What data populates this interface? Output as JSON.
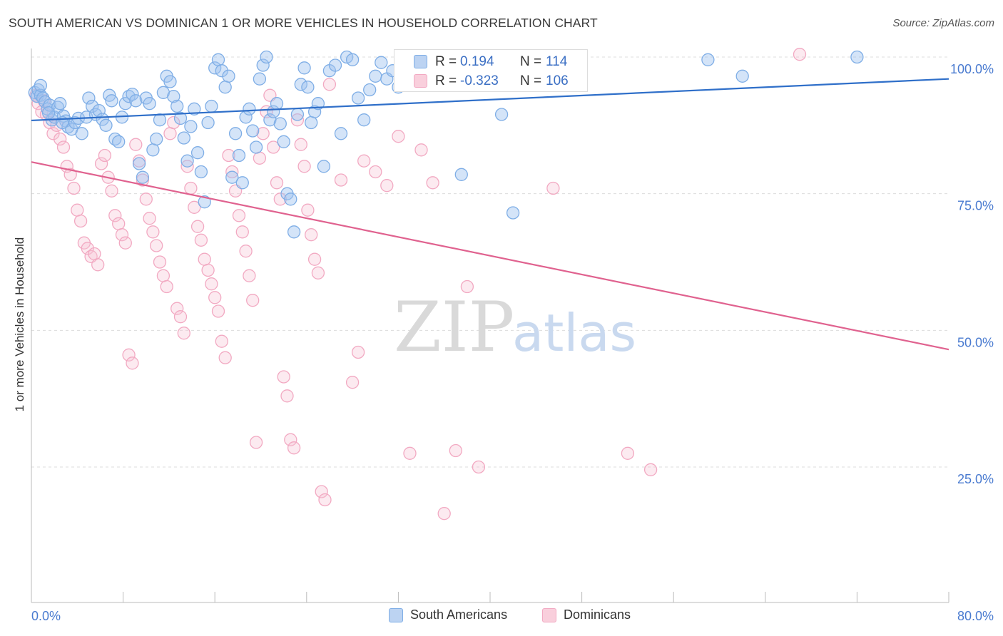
{
  "title": "SOUTH AMERICAN VS DOMINICAN 1 OR MORE VEHICLES IN HOUSEHOLD CORRELATION CHART",
  "source": "Source: ZipAtlas.com",
  "watermark": {
    "zip": "ZIP",
    "atlas": "atlas"
  },
  "colors": {
    "blue": "#7faee6",
    "blue_line": "#2f6fc9",
    "pink": "#f2a9c2",
    "pink_line": "#e0628f",
    "axis_text": "#4a7bd0",
    "grid": "#dcdcdc"
  },
  "stats": [
    {
      "r_label": "R =",
      "r_value": " 0.194",
      "n_label": "N =",
      "n_value": "114"
    },
    {
      "r_label": "R =",
      "r_value": "-0.323",
      "n_label": "N =",
      "n_value": "106"
    }
  ],
  "legend": [
    "South Americans",
    "Dominicans"
  ],
  "chart_data": {
    "type": "scatter",
    "ylabel": "1 or more Vehicles in Household",
    "xlim": [
      0,
      80
    ],
    "ylim": [
      0,
      104
    ],
    "x_ticks": [
      "0.0%",
      "80.0%"
    ],
    "y_ticks": [
      {
        "value": 100,
        "label": "100.0%"
      },
      {
        "value": 75,
        "label": "75.0%"
      },
      {
        "value": 50,
        "label": "50.0%"
      },
      {
        "value": 25,
        "label": "25.0%"
      }
    ],
    "grid": true,
    "legend_position": "bottom",
    "series": [
      {
        "name": "South Americans",
        "trend": {
          "x": [
            0,
            80
          ],
          "y": [
            88.4,
            96.0
          ]
        },
        "points": [
          [
            0.3,
            93.5
          ],
          [
            0.5,
            92.8
          ],
          [
            0.6,
            94.0
          ],
          [
            0.8,
            93.0
          ],
          [
            1.0,
            92.5
          ],
          [
            1.2,
            91.8
          ],
          [
            1.4,
            90.5
          ],
          [
            1.6,
            91.2
          ],
          [
            1.8,
            88.5
          ],
          [
            2.0,
            89.0
          ],
          [
            2.3,
            90.8
          ],
          [
            2.5,
            91.5
          ],
          [
            2.8,
            89.2
          ],
          [
            3.0,
            88.3
          ],
          [
            3.2,
            87.2
          ],
          [
            3.5,
            86.8
          ],
          [
            3.8,
            88.0
          ],
          [
            4.1,
            88.8
          ],
          [
            4.4,
            86.0
          ],
          [
            4.8,
            89.0
          ],
          [
            5.0,
            92.5
          ],
          [
            5.3,
            91.0
          ],
          [
            5.6,
            89.5
          ],
          [
            5.9,
            90.2
          ],
          [
            6.2,
            88.6
          ],
          [
            6.5,
            87.5
          ],
          [
            6.8,
            93.0
          ],
          [
            7.0,
            92.0
          ],
          [
            7.3,
            85.0
          ],
          [
            7.6,
            84.5
          ],
          [
            7.9,
            89.0
          ],
          [
            8.2,
            91.5
          ],
          [
            8.5,
            92.8
          ],
          [
            8.8,
            93.2
          ],
          [
            9.1,
            92.0
          ],
          [
            9.4,
            80.5
          ],
          [
            9.7,
            78.0
          ],
          [
            10.0,
            92.5
          ],
          [
            10.3,
            91.5
          ],
          [
            10.6,
            83.0
          ],
          [
            10.9,
            85.0
          ],
          [
            11.2,
            88.5
          ],
          [
            11.5,
            93.5
          ],
          [
            11.8,
            96.5
          ],
          [
            12.1,
            95.5
          ],
          [
            12.4,
            92.8
          ],
          [
            12.7,
            91.0
          ],
          [
            13.0,
            88.8
          ],
          [
            13.3,
            85.2
          ],
          [
            13.6,
            81.0
          ],
          [
            13.9,
            87.3
          ],
          [
            14.2,
            90.5
          ],
          [
            14.5,
            82.5
          ],
          [
            14.8,
            79.0
          ],
          [
            15.1,
            73.5
          ],
          [
            15.4,
            88.0
          ],
          [
            15.7,
            91.0
          ],
          [
            16.0,
            98.0
          ],
          [
            16.3,
            99.5
          ],
          [
            16.6,
            97.5
          ],
          [
            16.9,
            94.5
          ],
          [
            17.2,
            96.5
          ],
          [
            17.5,
            78.0
          ],
          [
            17.8,
            86.0
          ],
          [
            18.1,
            82.0
          ],
          [
            18.4,
            77.0
          ],
          [
            18.7,
            89.0
          ],
          [
            19.0,
            90.5
          ],
          [
            19.3,
            86.5
          ],
          [
            19.6,
            83.5
          ],
          [
            19.9,
            96.0
          ],
          [
            20.2,
            98.5
          ],
          [
            20.5,
            100.0
          ],
          [
            20.8,
            88.5
          ],
          [
            21.1,
            90.0
          ],
          [
            21.4,
            91.5
          ],
          [
            21.7,
            87.8
          ],
          [
            22.0,
            84.5
          ],
          [
            22.3,
            75.0
          ],
          [
            22.6,
            74.0
          ],
          [
            22.9,
            68.0
          ],
          [
            23.2,
            89.5
          ],
          [
            23.5,
            95.0
          ],
          [
            23.8,
            98.0
          ],
          [
            24.1,
            94.5
          ],
          [
            24.4,
            88.0
          ],
          [
            24.7,
            90.0
          ],
          [
            25.0,
            91.5
          ],
          [
            25.5,
            80.0
          ],
          [
            26.0,
            97.5
          ],
          [
            26.5,
            98.5
          ],
          [
            27.0,
            86.0
          ],
          [
            27.5,
            100.0
          ],
          [
            28.0,
            99.5
          ],
          [
            28.5,
            92.5
          ],
          [
            29.0,
            88.5
          ],
          [
            29.5,
            94.0
          ],
          [
            30.0,
            96.5
          ],
          [
            30.5,
            99.0
          ],
          [
            31.0,
            96.0
          ],
          [
            31.5,
            97.5
          ],
          [
            32.0,
            94.5
          ],
          [
            32.5,
            99.5
          ],
          [
            33.0,
            95.0
          ],
          [
            33.5,
            100.0
          ],
          [
            37.5,
            78.5
          ],
          [
            41.0,
            89.5
          ],
          [
            42.0,
            71.5
          ],
          [
            59.0,
            99.5
          ],
          [
            62.0,
            96.5
          ],
          [
            72.0,
            100.0
          ],
          [
            0.8,
            94.8
          ],
          [
            1.5,
            89.8
          ],
          [
            2.7,
            88.0
          ]
        ]
      },
      {
        "name": "Dominicans",
        "trend": {
          "x": [
            0,
            80
          ],
          "y": [
            80.8,
            46.5
          ]
        },
        "points": [
          [
            0.4,
            93.0
          ],
          [
            0.6,
            91.5
          ],
          [
            0.9,
            90.0
          ],
          [
            1.1,
            92.0
          ],
          [
            1.3,
            89.5
          ],
          [
            1.6,
            88.0
          ],
          [
            1.9,
            86.0
          ],
          [
            2.2,
            87.5
          ],
          [
            2.5,
            85.0
          ],
          [
            2.8,
            83.5
          ],
          [
            3.1,
            80.0
          ],
          [
            3.4,
            78.5
          ],
          [
            3.7,
            76.0
          ],
          [
            4.0,
            72.0
          ],
          [
            4.3,
            70.0
          ],
          [
            4.6,
            66.0
          ],
          [
            4.9,
            65.0
          ],
          [
            5.2,
            63.5
          ],
          [
            5.5,
            64.0
          ],
          [
            5.8,
            62.0
          ],
          [
            6.1,
            80.5
          ],
          [
            6.4,
            82.0
          ],
          [
            6.7,
            78.0
          ],
          [
            7.0,
            75.5
          ],
          [
            7.3,
            71.0
          ],
          [
            7.6,
            69.5
          ],
          [
            7.9,
            67.5
          ],
          [
            8.2,
            66.0
          ],
          [
            8.5,
            45.5
          ],
          [
            8.8,
            44.0
          ],
          [
            9.1,
            84.0
          ],
          [
            9.4,
            81.0
          ],
          [
            9.7,
            77.5
          ],
          [
            10.0,
            74.0
          ],
          [
            10.3,
            70.5
          ],
          [
            10.6,
            68.0
          ],
          [
            10.9,
            65.5
          ],
          [
            11.2,
            62.5
          ],
          [
            11.5,
            60.0
          ],
          [
            11.8,
            58.0
          ],
          [
            12.1,
            86.0
          ],
          [
            12.4,
            88.0
          ],
          [
            12.7,
            54.0
          ],
          [
            13.0,
            52.5
          ],
          [
            13.3,
            49.5
          ],
          [
            13.6,
            80.0
          ],
          [
            13.9,
            76.0
          ],
          [
            14.2,
            72.5
          ],
          [
            14.5,
            69.0
          ],
          [
            14.8,
            66.5
          ],
          [
            15.1,
            63.0
          ],
          [
            15.4,
            61.0
          ],
          [
            15.7,
            58.5
          ],
          [
            16.0,
            56.0
          ],
          [
            16.3,
            53.5
          ],
          [
            16.6,
            48.0
          ],
          [
            16.9,
            45.0
          ],
          [
            17.2,
            82.0
          ],
          [
            17.5,
            79.0
          ],
          [
            17.8,
            75.5
          ],
          [
            18.1,
            71.0
          ],
          [
            18.4,
            68.0
          ],
          [
            18.7,
            64.5
          ],
          [
            19.0,
            60.0
          ],
          [
            19.3,
            55.5
          ],
          [
            19.6,
            29.5
          ],
          [
            19.9,
            81.5
          ],
          [
            20.2,
            86.0
          ],
          [
            20.5,
            90.0
          ],
          [
            20.8,
            93.0
          ],
          [
            21.1,
            83.5
          ],
          [
            21.4,
            77.0
          ],
          [
            21.7,
            74.0
          ],
          [
            22.0,
            41.5
          ],
          [
            22.3,
            38.0
          ],
          [
            22.6,
            30.0
          ],
          [
            22.9,
            28.5
          ],
          [
            23.2,
            88.5
          ],
          [
            23.5,
            84.0
          ],
          [
            23.8,
            80.0
          ],
          [
            24.1,
            72.0
          ],
          [
            24.4,
            67.5
          ],
          [
            24.7,
            63.0
          ],
          [
            25.0,
            60.5
          ],
          [
            25.3,
            20.5
          ],
          [
            25.6,
            19.0
          ],
          [
            26.0,
            95.0
          ],
          [
            27.0,
            77.5
          ],
          [
            28.0,
            40.5
          ],
          [
            28.5,
            46.0
          ],
          [
            29.0,
            81.0
          ],
          [
            30.0,
            79.0
          ],
          [
            31.0,
            76.5
          ],
          [
            32.0,
            85.5
          ],
          [
            33.0,
            27.5
          ],
          [
            34.0,
            83.0
          ],
          [
            35.0,
            77.0
          ],
          [
            36.0,
            16.5
          ],
          [
            37.0,
            28.0
          ],
          [
            38.0,
            58.0
          ],
          [
            39.0,
            25.0
          ],
          [
            40.0,
            100.0
          ],
          [
            45.5,
            76.0
          ],
          [
            52.0,
            27.5
          ],
          [
            54.0,
            24.5
          ],
          [
            67.0,
            100.5
          ]
        ]
      }
    ]
  }
}
